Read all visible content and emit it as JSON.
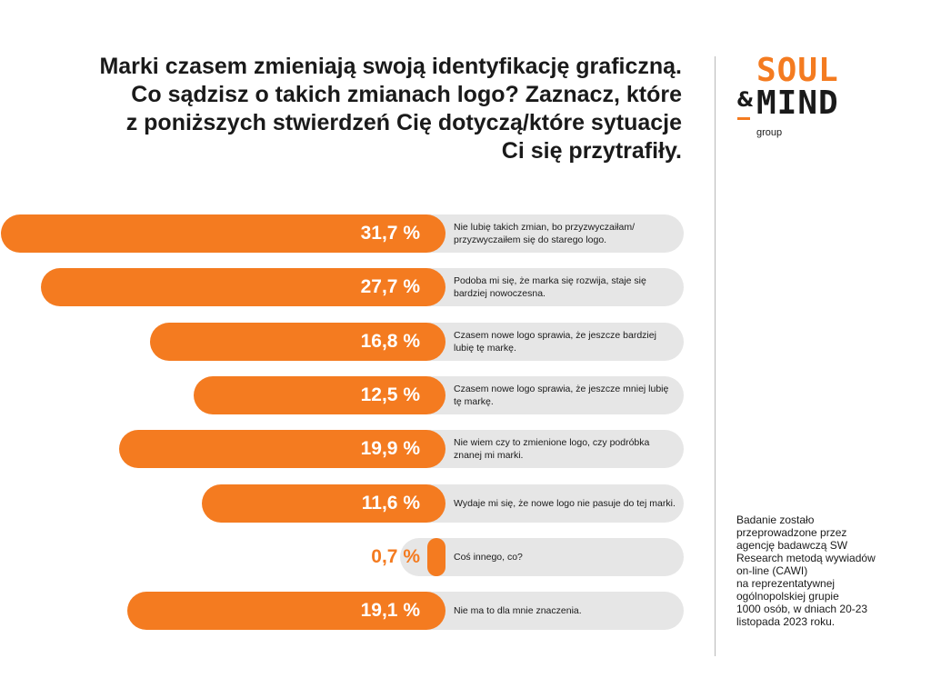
{
  "title": {
    "lines": [
      "Marki czasem zmieniają swoją identyfikację graficzną.",
      "Co sądzisz o takich zmianach logo? Zaznacz, które",
      "z poniższych stwierdzeń Cię dotyczą/które sytuacje",
      "Ci się przytrafiły."
    ]
  },
  "logo": {
    "top": "SOUL",
    "amp": "&",
    "bottom": "MIND",
    "sub": "group"
  },
  "note": {
    "lines": [
      "Badanie zostało",
      "przeprowadzone przez",
      "agencję badawczą SW",
      "Research metodą wywiadów",
      "on-line (CAWI)",
      "na reprezentatywnej",
      "ogólnopolskiej grupie",
      "1000 osób, w dniach 20-23",
      "listopada 2023 roku."
    ]
  },
  "colors": {
    "accent": "#f47b20",
    "track": "#e6e6e6",
    "text": "#1a1a1a"
  },
  "chart_data": {
    "type": "bar",
    "orientation": "horizontal",
    "unit": "%",
    "categories": [
      "Nie lubię takich zmian, bo przyzwyczaiłam/ przyzwyczaiłem się do starego logo.",
      "Podoba mi się, że marka się rozwija, staje się bardziej nowoczesna.",
      "Czasem nowe logo sprawia, że jeszcze bardziej lubię tę markę.",
      "Czasem nowe logo sprawia, że jeszcze mniej lubię tę markę.",
      "Nie wiem czy to zmienione logo, czy podróbka znanej mi marki.",
      "Wydaje mi się, że nowe logo nie pasuje do tej marki.",
      "Coś innego, co?",
      "Nie ma to dla mnie znaczenia."
    ],
    "values": [
      31.7,
      27.7,
      16.8,
      12.5,
      19.9,
      11.6,
      0.7,
      19.1
    ],
    "value_labels": [
      "31,7 %",
      "27,7 %",
      "16,8 %",
      "12,5 %",
      "19,9 %",
      "11,6 %",
      "0,7 %",
      "19,1 %"
    ],
    "xlim": [
      0,
      34
    ]
  }
}
